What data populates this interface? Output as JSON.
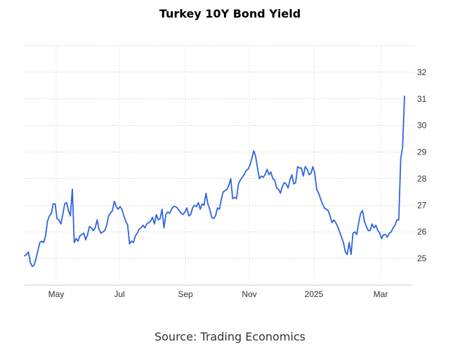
{
  "chart_data": {
    "type": "line",
    "title": "Turkey 10Y Bond Yield",
    "source": "Source: Trading Economics",
    "xlabel": "",
    "ylabel": "",
    "ylim": [
      24,
      33
    ],
    "grid": true,
    "y_ticks": [
      "25",
      "26",
      "27",
      "28",
      "29",
      "30",
      "31",
      "32"
    ],
    "x_ticks": [
      "May",
      "Jul",
      "Sep",
      "Nov",
      "2025",
      "Mar"
    ],
    "color": "#2f64e0",
    "series": [
      {
        "values": [
          25.1,
          25.15,
          25.25,
          24.85,
          24.7,
          24.75,
          25.0,
          25.3,
          25.6,
          25.65,
          25.6,
          25.85,
          26.4,
          26.6,
          26.7,
          27.05,
          27.05,
          26.5,
          26.45,
          26.3,
          26.65,
          27.05,
          27.1,
          26.8,
          26.6,
          27.6,
          25.6,
          25.75,
          25.65,
          25.85,
          25.9,
          25.95,
          25.7,
          25.9,
          26.2,
          26.15,
          26.05,
          26.15,
          26.45,
          26.1,
          25.95,
          26.0,
          26.05,
          26.25,
          26.6,
          26.7,
          26.8,
          27.15,
          26.95,
          26.85,
          26.95,
          26.85,
          26.6,
          26.4,
          26.25,
          25.55,
          25.65,
          25.6,
          25.85,
          25.95,
          26.1,
          26.15,
          26.25,
          26.15,
          26.3,
          26.35,
          26.4,
          26.55,
          26.3,
          26.65,
          26.45,
          26.5,
          26.85,
          26.15,
          26.65,
          26.75,
          26.7,
          26.85,
          26.95,
          26.95,
          26.9,
          26.8,
          26.7,
          26.65,
          26.75,
          26.9,
          26.6,
          26.65,
          26.9,
          27.0,
          26.95,
          27.1,
          26.85,
          27.05,
          27.0,
          27.45,
          27.05,
          26.85,
          26.55,
          26.5,
          26.6,
          26.9,
          26.85,
          27.2,
          27.5,
          27.55,
          27.6,
          27.75,
          28.0,
          27.25,
          27.3,
          27.25,
          27.8,
          27.95,
          28.05,
          28.15,
          28.3,
          28.35,
          28.5,
          28.75,
          29.05,
          28.85,
          28.4,
          28.0,
          28.1,
          28.05,
          28.15,
          28.35,
          28.15,
          28.25,
          28.0,
          27.95,
          27.65,
          27.6,
          27.45,
          27.7,
          27.85,
          27.8,
          27.65,
          27.95,
          28.15,
          27.8,
          27.85,
          28.45,
          28.4,
          28.4,
          28.1,
          28.45,
          28.35,
          28.15,
          28.2,
          28.45,
          28.2,
          27.6,
          27.45,
          27.25,
          27.05,
          26.9,
          26.85,
          26.8,
          26.6,
          26.35,
          26.45,
          26.35,
          26.2,
          26.0,
          25.8,
          25.6,
          25.25,
          25.15,
          25.6,
          25.15,
          25.95,
          26.0,
          25.9,
          26.35,
          26.7,
          26.8,
          26.4,
          26.2,
          26.05,
          26.05,
          26.3,
          26.15,
          26.25,
          26.05,
          25.95,
          25.75,
          25.9,
          25.9,
          25.8,
          25.95,
          26.0,
          26.15,
          26.25,
          26.45,
          26.45,
          28.75,
          29.2,
          31.1
        ]
      }
    ]
  }
}
